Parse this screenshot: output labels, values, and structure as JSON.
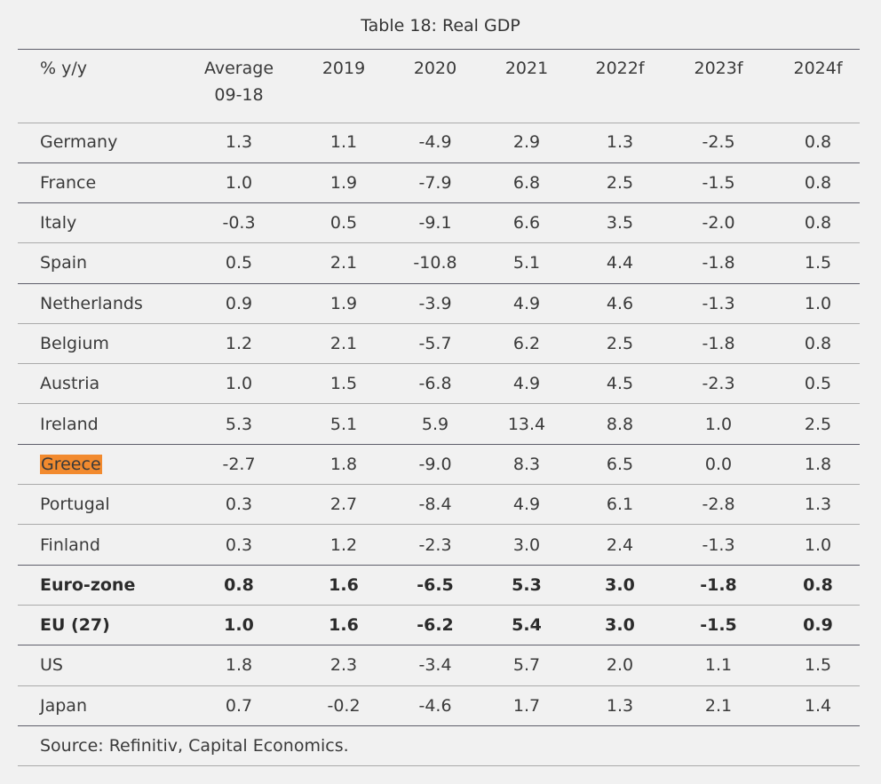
{
  "table": {
    "title": "Table 18: Real GDP",
    "headers": [
      "% y/y",
      "Average\n09-18",
      "2019",
      "2020",
      "2021",
      "2022f",
      "2023f",
      "2024f"
    ],
    "rows": [
      {
        "label": "Germany",
        "values": [
          "1.3",
          "1.1",
          "-4.9",
          "2.9",
          "1.3",
          "-2.5",
          "0.8"
        ]
      },
      {
        "label": "France",
        "values": [
          "1.0",
          "1.9",
          "-7.9",
          "6.8",
          "2.5",
          "-1.5",
          "0.8"
        ]
      },
      {
        "label": "Italy",
        "values": [
          "-0.3",
          "0.5",
          "-9.1",
          "6.6",
          "3.5",
          "-2.0",
          "0.8"
        ]
      },
      {
        "label": "Spain",
        "values": [
          "0.5",
          "2.1",
          "-10.8",
          "5.1",
          "4.4",
          "-1.8",
          "1.5"
        ]
      },
      {
        "label": "Netherlands",
        "values": [
          "0.9",
          "1.9",
          "-3.9",
          "4.9",
          "4.6",
          "-1.3",
          "1.0"
        ]
      },
      {
        "label": "Belgium",
        "values": [
          "1.2",
          "2.1",
          "-5.7",
          "6.2",
          "2.5",
          "-1.8",
          "0.8"
        ]
      },
      {
        "label": "Austria",
        "values": [
          "1.0",
          "1.5",
          "-6.8",
          "4.9",
          "4.5",
          "-2.3",
          "0.5"
        ]
      },
      {
        "label": "Ireland",
        "values": [
          "5.3",
          "5.1",
          "5.9",
          "13.4",
          "8.8",
          "1.0",
          "2.5"
        ]
      },
      {
        "label": "Greece",
        "values": [
          "-2.7",
          "1.8",
          "-9.0",
          "8.3",
          "6.5",
          "0.0",
          "1.8"
        ],
        "highlight": true
      },
      {
        "label": "Portugal",
        "values": [
          "0.3",
          "2.7",
          "-8.4",
          "4.9",
          "6.1",
          "-2.8",
          "1.3"
        ]
      },
      {
        "label": "Finland",
        "values": [
          "0.3",
          "1.2",
          "-2.3",
          "3.0",
          "2.4",
          "-1.3",
          "1.0"
        ]
      },
      {
        "label": "Euro-zone",
        "values": [
          "0.8",
          "1.6",
          "-6.5",
          "5.3",
          "3.0",
          "-1.8",
          "0.8"
        ],
        "bold": true
      },
      {
        "label": "EU (27)",
        "values": [
          "1.0",
          "1.6",
          "-6.2",
          "5.4",
          "3.0",
          "-1.5",
          "0.9"
        ],
        "bold": true
      },
      {
        "label": "US",
        "values": [
          "1.8",
          "2.3",
          "-3.4",
          "5.7",
          "2.0",
          "1.1",
          "1.5"
        ]
      },
      {
        "label": "Japan",
        "values": [
          "0.7",
          "-0.2",
          "-4.6",
          "1.7",
          "1.3",
          "2.1",
          "1.4"
        ]
      }
    ],
    "source": "Source: Refinitiv, Capital Economics."
  },
  "colors": {
    "highlight": "#f28a2e",
    "rule_dark": "#5e5e6a",
    "rule_light": "#aaaaaa",
    "background": "#f1f1f1"
  }
}
